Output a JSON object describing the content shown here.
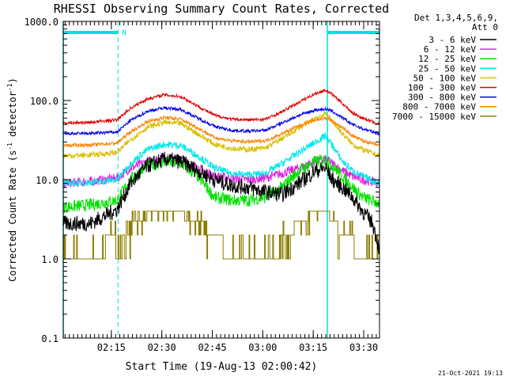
{
  "chart_data": {
    "type": "line",
    "title": "RHESSI Observing Summary Count Rates, Corrected",
    "xlabel": "Start Time (19-Aug-13 02:00:42)",
    "ylabel": "Corrected Count Rate (s⁻¹ detector⁻¹)",
    "ylabel_main": "Corrected Count Rate (s",
    "ylabel_sup1": "-1",
    "ylabel_mid": " detector",
    "ylabel_sup2": "-1",
    "ylabel_end": ")",
    "y_scale": "log",
    "ylim": [
      0.1,
      1000
    ],
    "xlim_minutes": [
      0,
      94
    ],
    "x_ticks": [
      {
        "label": "02:15",
        "minute": 14.3
      },
      {
        "label": "02:30",
        "minute": 29.3
      },
      {
        "label": "02:45",
        "minute": 44.3
      },
      {
        "label": "03:00",
        "minute": 59.3
      },
      {
        "label": "03:15",
        "minute": 74.3
      },
      {
        "label": "03:30",
        "minute": 89.3
      }
    ],
    "y_ticks": [
      {
        "label": "1000.0",
        "value": 1000
      },
      {
        "label": "100.0",
        "value": 100
      },
      {
        "label": "10.0",
        "value": 10
      },
      {
        "label": "1.0",
        "value": 1
      },
      {
        "label": "0.1",
        "value": 0.1
      }
    ],
    "legend": {
      "placement": "top-right",
      "header_line1": "Det 1,3,4,5,6,9,",
      "header_line2": "Att 0"
    },
    "night_bars": [
      {
        "start": 0,
        "end": 16.3,
        "label": "N"
      },
      {
        "start": 78.5,
        "end": 94,
        "label": ""
      }
    ],
    "dashed_lines": [
      16.3,
      94
    ],
    "solid_lines": [
      0,
      78.5
    ],
    "series": [
      {
        "name": "3 - 6 keV",
        "color": "#000000",
        "points": [
          [
            0,
            2.8
          ],
          [
            8,
            2.8
          ],
          [
            16,
            4.2
          ],
          [
            20,
            9
          ],
          [
            25,
            15
          ],
          [
            30,
            18
          ],
          [
            35,
            17
          ],
          [
            40,
            13
          ],
          [
            45,
            10
          ],
          [
            50,
            8.5
          ],
          [
            55,
            8
          ],
          [
            60,
            7
          ],
          [
            65,
            6.5
          ],
          [
            70,
            9
          ],
          [
            75,
            13
          ],
          [
            78,
            14
          ],
          [
            80,
            10
          ],
          [
            83,
            8
          ],
          [
            86,
            6
          ],
          [
            89,
            4
          ],
          [
            92,
            2.8
          ],
          [
            94,
            1.3
          ]
        ]
      },
      {
        "name": "6 - 12 keV",
        "color": "#e020e0",
        "points": [
          [
            0,
            9
          ],
          [
            8,
            9.5
          ],
          [
            16,
            10.5
          ],
          [
            20,
            14
          ],
          [
            25,
            17
          ],
          [
            30,
            19
          ],
          [
            35,
            18
          ],
          [
            40,
            14
          ],
          [
            45,
            11
          ],
          [
            50,
            10.5
          ],
          [
            55,
            10
          ],
          [
            60,
            10.5
          ],
          [
            65,
            12
          ],
          [
            70,
            14
          ],
          [
            75,
            17
          ],
          [
            78,
            18
          ],
          [
            80,
            16
          ],
          [
            83,
            13
          ],
          [
            86,
            11
          ],
          [
            89,
            10
          ],
          [
            94,
            9
          ]
        ]
      },
      {
        "name": "12 - 25 keV",
        "color": "#00e000",
        "points": [
          [
            0,
            4.5
          ],
          [
            8,
            4.8
          ],
          [
            16,
            5.5
          ],
          [
            20,
            10
          ],
          [
            25,
            15
          ],
          [
            30,
            17
          ],
          [
            35,
            16
          ],
          [
            40,
            11
          ],
          [
            45,
            6
          ],
          [
            50,
            5.5
          ],
          [
            55,
            5.5
          ],
          [
            60,
            6
          ],
          [
            65,
            8
          ],
          [
            70,
            13
          ],
          [
            75,
            17
          ],
          [
            78,
            18
          ],
          [
            80,
            15
          ],
          [
            83,
            11
          ],
          [
            86,
            8
          ],
          [
            89,
            6
          ],
          [
            94,
            5
          ]
        ]
      },
      {
        "name": "25 - 50 keV",
        "color": "#00e8e8",
        "points": [
          [
            0,
            9
          ],
          [
            8,
            9.2
          ],
          [
            16,
            10
          ],
          [
            20,
            16
          ],
          [
            25,
            24
          ],
          [
            30,
            28
          ],
          [
            35,
            27
          ],
          [
            40,
            20
          ],
          [
            45,
            14
          ],
          [
            50,
            12
          ],
          [
            55,
            11.5
          ],
          [
            60,
            12
          ],
          [
            65,
            16
          ],
          [
            70,
            22
          ],
          [
            75,
            30
          ],
          [
            78,
            36
          ],
          [
            80,
            27
          ],
          [
            83,
            17
          ],
          [
            86,
            13
          ],
          [
            89,
            11
          ],
          [
            94,
            9
          ]
        ]
      },
      {
        "name": "50 - 100 keV",
        "color": "#d8c000",
        "points": [
          [
            0,
            20
          ],
          [
            8,
            20.5
          ],
          [
            16,
            22
          ],
          [
            20,
            32
          ],
          [
            25,
            46
          ],
          [
            30,
            53
          ],
          [
            35,
            51
          ],
          [
            40,
            38
          ],
          [
            45,
            28
          ],
          [
            50,
            25
          ],
          [
            55,
            24
          ],
          [
            60,
            25
          ],
          [
            65,
            33
          ],
          [
            70,
            45
          ],
          [
            75,
            60
          ],
          [
            78,
            68
          ],
          [
            80,
            55
          ],
          [
            83,
            38
          ],
          [
            86,
            28
          ],
          [
            89,
            24
          ],
          [
            94,
            20
          ]
        ]
      },
      {
        "name": "100 - 300 keV",
        "color": "#e00000",
        "points": [
          [
            0,
            52
          ],
          [
            8,
            53
          ],
          [
            16,
            57
          ],
          [
            20,
            80
          ],
          [
            25,
            105
          ],
          [
            30,
            118
          ],
          [
            35,
            112
          ],
          [
            40,
            85
          ],
          [
            45,
            65
          ],
          [
            50,
            58
          ],
          [
            55,
            57
          ],
          [
            60,
            58
          ],
          [
            65,
            72
          ],
          [
            70,
            95
          ],
          [
            75,
            123
          ],
          [
            78,
            135
          ],
          [
            80,
            120
          ],
          [
            83,
            92
          ],
          [
            86,
            70
          ],
          [
            89,
            60
          ],
          [
            94,
            50
          ]
        ]
      },
      {
        "name": "300 - 800 keV",
        "color": "#0000e8",
        "points": [
          [
            0,
            38
          ],
          [
            8,
            38.5
          ],
          [
            16,
            40
          ],
          [
            20,
            56
          ],
          [
            25,
            73
          ],
          [
            30,
            81
          ],
          [
            35,
            77
          ],
          [
            40,
            60
          ],
          [
            45,
            47
          ],
          [
            50,
            42
          ],
          [
            55,
            41
          ],
          [
            60,
            42
          ],
          [
            65,
            52
          ],
          [
            70,
            65
          ],
          [
            75,
            76
          ],
          [
            78,
            78
          ],
          [
            80,
            73
          ],
          [
            83,
            60
          ],
          [
            86,
            50
          ],
          [
            89,
            44
          ],
          [
            94,
            38
          ]
        ]
      },
      {
        "name": "800 - 7000 keV",
        "color": "#ff8000",
        "points": [
          [
            0,
            27
          ],
          [
            8,
            27.5
          ],
          [
            16,
            29
          ],
          [
            20,
            40
          ],
          [
            25,
            54
          ],
          [
            30,
            61
          ],
          [
            35,
            58
          ],
          [
            40,
            45
          ],
          [
            45,
            34
          ],
          [
            50,
            31
          ],
          [
            55,
            30
          ],
          [
            60,
            31
          ],
          [
            65,
            38
          ],
          [
            70,
            48
          ],
          [
            75,
            57
          ],
          [
            78,
            60
          ],
          [
            80,
            55
          ],
          [
            83,
            45
          ],
          [
            86,
            36
          ],
          [
            89,
            31
          ],
          [
            94,
            27
          ]
        ]
      },
      {
        "name": "7000 - 15000 keV",
        "color": "#8b7d00",
        "points": [
          [
            0,
            1
          ],
          [
            10,
            1
          ],
          [
            15,
            2
          ],
          [
            16,
            1
          ],
          [
            20,
            2.5
          ],
          [
            25,
            3.5
          ],
          [
            30,
            4
          ],
          [
            35,
            4
          ],
          [
            40,
            3
          ],
          [
            45,
            2
          ],
          [
            50,
            1
          ],
          [
            55,
            1
          ],
          [
            60,
            1
          ],
          [
            65,
            1.5
          ],
          [
            70,
            3
          ],
          [
            75,
            3.7
          ],
          [
            78,
            4
          ],
          [
            80,
            3
          ],
          [
            83,
            2
          ],
          [
            86,
            1.5
          ],
          [
            89,
            1
          ],
          [
            94,
            1
          ]
        ]
      }
    ]
  },
  "footer": {
    "timestamp": "21-Oct-2021 19:13"
  }
}
